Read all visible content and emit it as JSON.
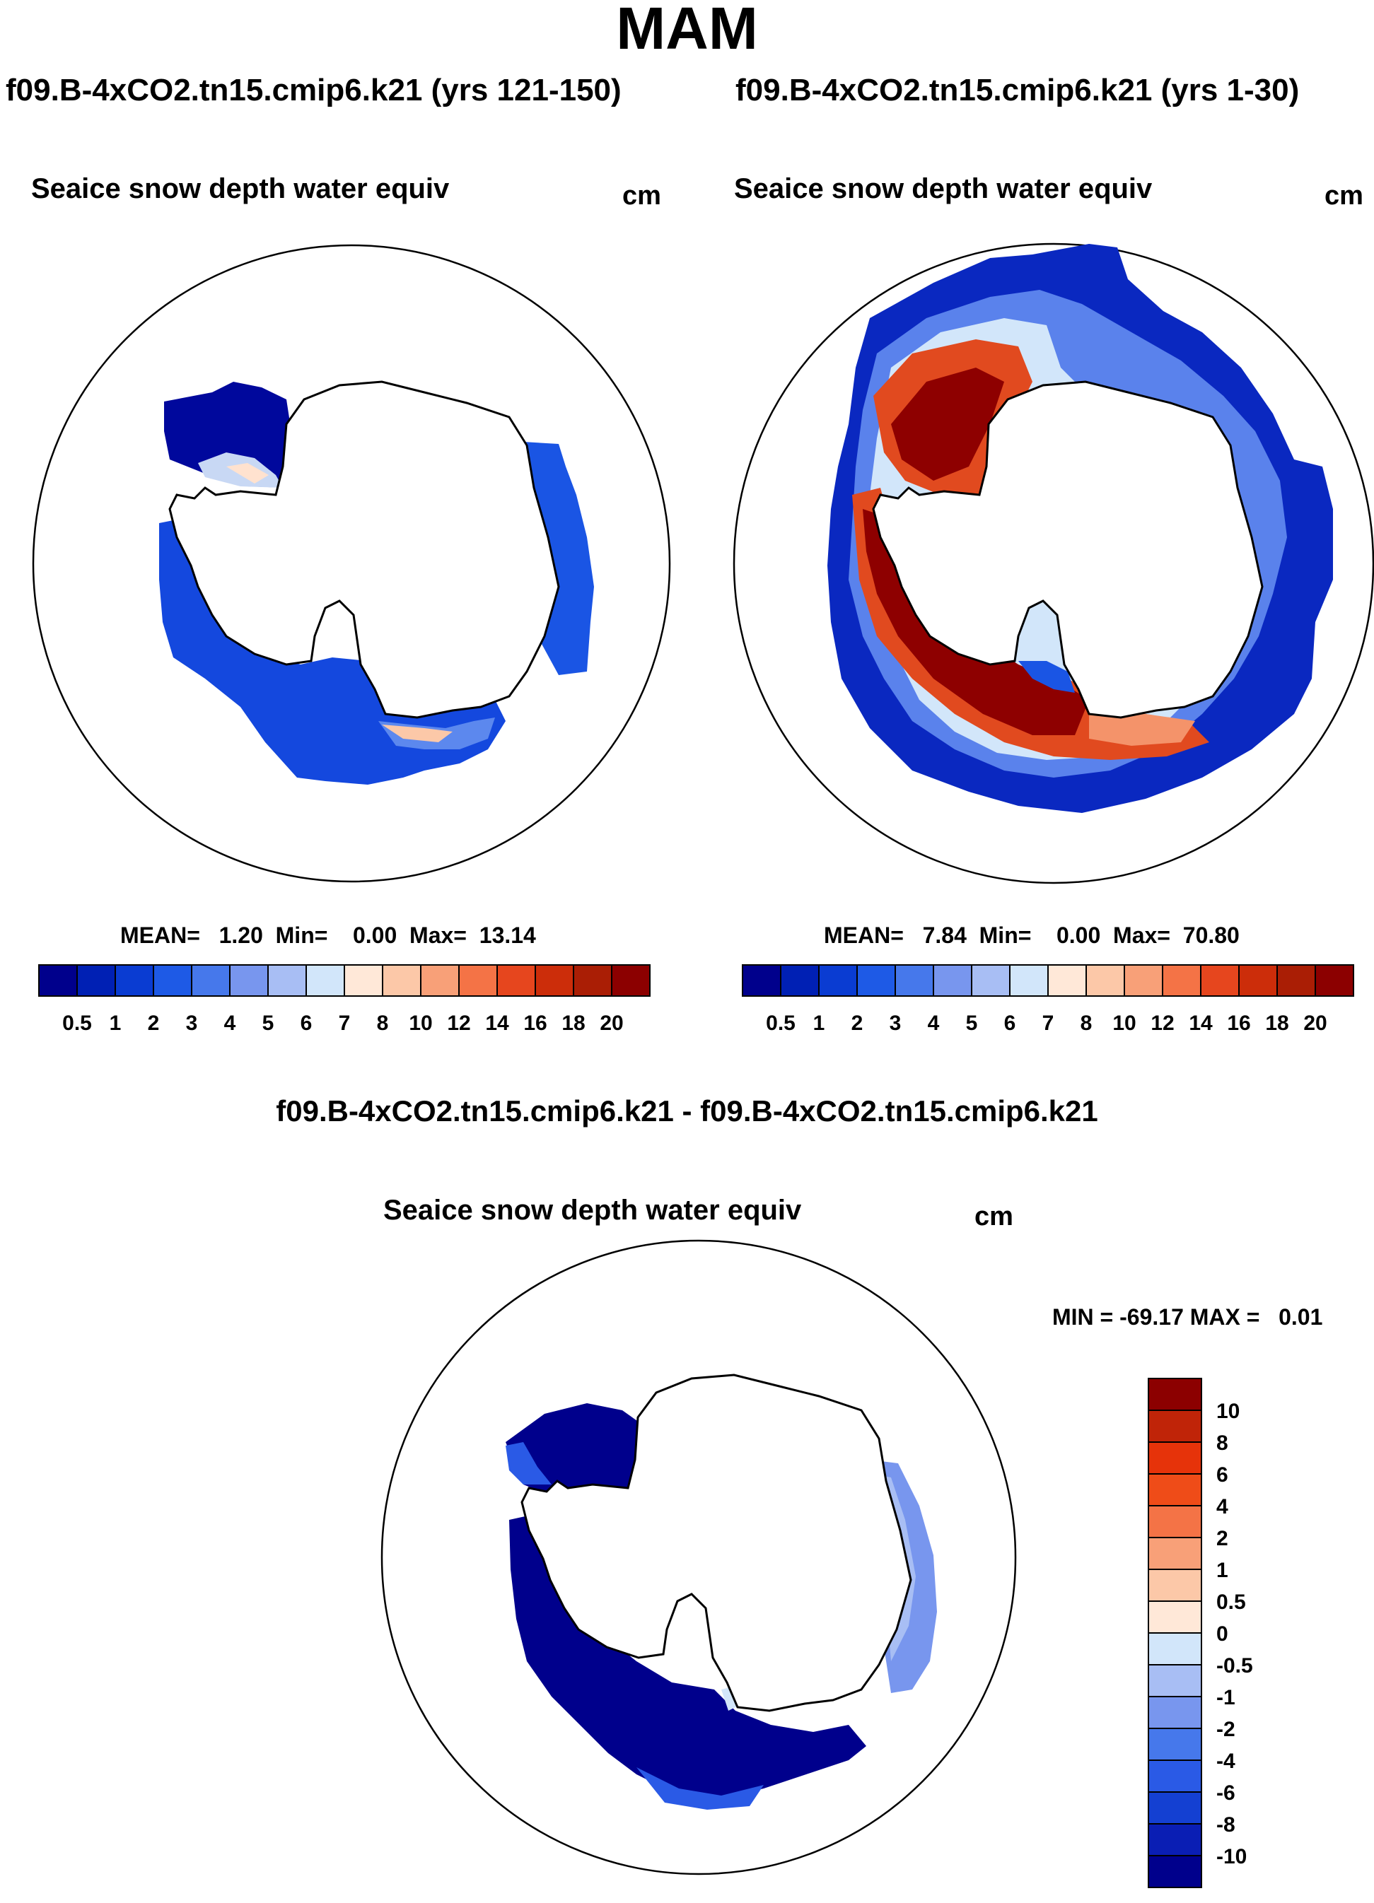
{
  "title": "MAM",
  "panels": [
    {
      "subtitle": "f09.B-4xCO2.tn15.cmip6.k21 (yrs 121-150)",
      "var_label": "Seaice snow depth water equiv",
      "units": "cm",
      "stats": "MEAN=   1.20  Min=    0.00  Max=  13.14"
    },
    {
      "subtitle": "f09.B-4xCO2.tn15.cmip6.k21 (yrs 1-30)",
      "var_label": "Seaice snow depth water equiv",
      "units": "cm",
      "stats": "MEAN=   7.84  Min=    0.00  Max=  70.80"
    },
    {
      "subtitle": "f09.B-4xCO2.tn15.cmip6.k21 - f09.B-4xCO2.tn15.cmip6.k21",
      "var_label": "Seaice snow depth water equiv",
      "units": "cm",
      "stats": "MIN = -69.17 MAX =   0.01"
    }
  ],
  "colors": {
    "abs_scale": [
      "#00008c",
      "#0020b4",
      "#0a3cd2",
      "#1e5ae6",
      "#4678eb",
      "#7896ee",
      "#a8bef4",
      "#d2e6fa",
      "#ffe8d8",
      "#fcc8a8",
      "#f8a078",
      "#f47346",
      "#e6461e",
      "#cc2d0a",
      "#aa1e05",
      "#8c0000"
    ],
    "diff_scale": [
      "#00008c",
      "#0a1eb4",
      "#1440d2",
      "#2a5ae6",
      "#4678eb",
      "#7896ee",
      "#a8bef4",
      "#d2e6fa",
      "#ffe8d8",
      "#fcc8a8",
      "#f8a078",
      "#f47346",
      "#ef4c18",
      "#e6330a",
      "#c02408",
      "#8c0000"
    ]
  },
  "chart_data": [
    {
      "type": "heatmap",
      "projection": "south-polar-stereographic",
      "title": "f09.B-4xCO2.tn15.cmip6.k21 (yrs 121-150)",
      "variable": "Seaice snow depth water equiv",
      "units": "cm",
      "colorbar_levels": [
        "0.5",
        "1",
        "2",
        "3",
        "4",
        "5",
        "6",
        "7",
        "8",
        "10",
        "12",
        "14",
        "16",
        "18",
        "20"
      ],
      "mean": 1.2,
      "min": 0.0,
      "max": 13.14
    },
    {
      "type": "heatmap",
      "projection": "south-polar-stereographic",
      "title": "f09.B-4xCO2.tn15.cmip6.k21 (yrs 1-30)",
      "variable": "Seaice snow depth water equiv",
      "units": "cm",
      "colorbar_levels": [
        "0.5",
        "1",
        "2",
        "3",
        "4",
        "5",
        "6",
        "7",
        "8",
        "10",
        "12",
        "14",
        "16",
        "18",
        "20"
      ],
      "mean": 7.84,
      "min": 0.0,
      "max": 70.8
    },
    {
      "type": "heatmap",
      "projection": "south-polar-stereographic",
      "title": "f09.B-4xCO2.tn15.cmip6.k21 - f09.B-4xCO2.tn15.cmip6.k21",
      "variable": "Seaice snow depth water equiv",
      "units": "cm",
      "colorbar_levels": [
        "10",
        "8",
        "6",
        "4",
        "2",
        "1",
        "0.5",
        "0",
        "-0.5",
        "-1",
        "-2",
        "-4",
        "-6",
        "-8",
        "-10"
      ],
      "min": -69.17,
      "max": 0.01
    }
  ]
}
